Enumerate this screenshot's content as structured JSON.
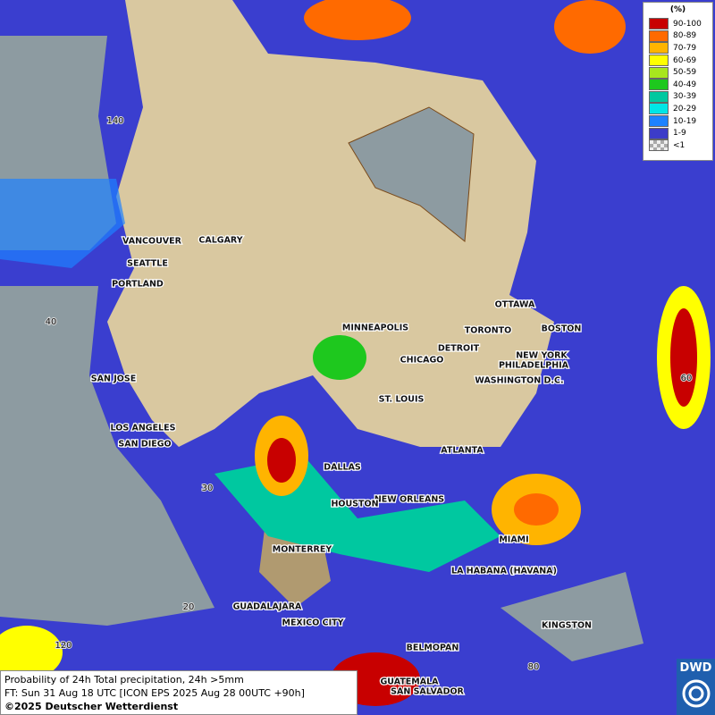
{
  "map": {
    "cities": [
      "VANCOUVER",
      "CALGARY",
      "SEATTLE",
      "PORTLAND",
      "MINNEAPOLIS",
      "OTTAWA",
      "TORONTO",
      "BOSTON",
      "DETROIT",
      "NEW YORK",
      "PHILADELPHIA",
      "CHICAGO",
      "SAN JOSE",
      "WASHINGTON D.C.",
      "ST. LOUIS",
      "LOS ANGELES",
      "SAN DIEGO",
      "ATLANTA",
      "DALLAS",
      "NEW ORLEANS",
      "HOUSTON",
      "MIAMI",
      "MONTERREY",
      "LA HABANA (HAVANA)",
      "GUADALAJARA",
      "MEXICO CITY",
      "KINGSTON",
      "BELMOPAN",
      "GUATEMALA",
      "SAN SALVADOR"
    ],
    "grid_labels": [
      "140",
      "40",
      "60",
      "30",
      "20",
      "120",
      "80"
    ]
  },
  "legend": {
    "title": "(%)",
    "items": [
      {
        "label": "90-100",
        "color": "#c80000"
      },
      {
        "label": "80-89",
        "color": "#ff6a00"
      },
      {
        "label": "70-79",
        "color": "#ffb400"
      },
      {
        "label": "60-69",
        "color": "#ffff00"
      },
      {
        "label": "50-59",
        "color": "#a8e61e"
      },
      {
        "label": "40-49",
        "color": "#1ec81e"
      },
      {
        "label": "30-39",
        "color": "#00c8a0"
      },
      {
        "label": "20-29",
        "color": "#00e6e6"
      },
      {
        "label": "10-19",
        "color": "#1e82ff"
      },
      {
        "label": "1-9",
        "color": "#3c3cc8"
      },
      {
        "label": "<1",
        "color": "checker"
      }
    ]
  },
  "footer": {
    "line1": "Probability of 24h Total precipitation, 24h >5mm",
    "line2": "FT: Sun 31 Aug 18 UTC [ICON EPS 2025 Aug 28 00UTC +90h]",
    "line3": "©2025 Deutscher Wetterdienst"
  },
  "logo": "DWD"
}
